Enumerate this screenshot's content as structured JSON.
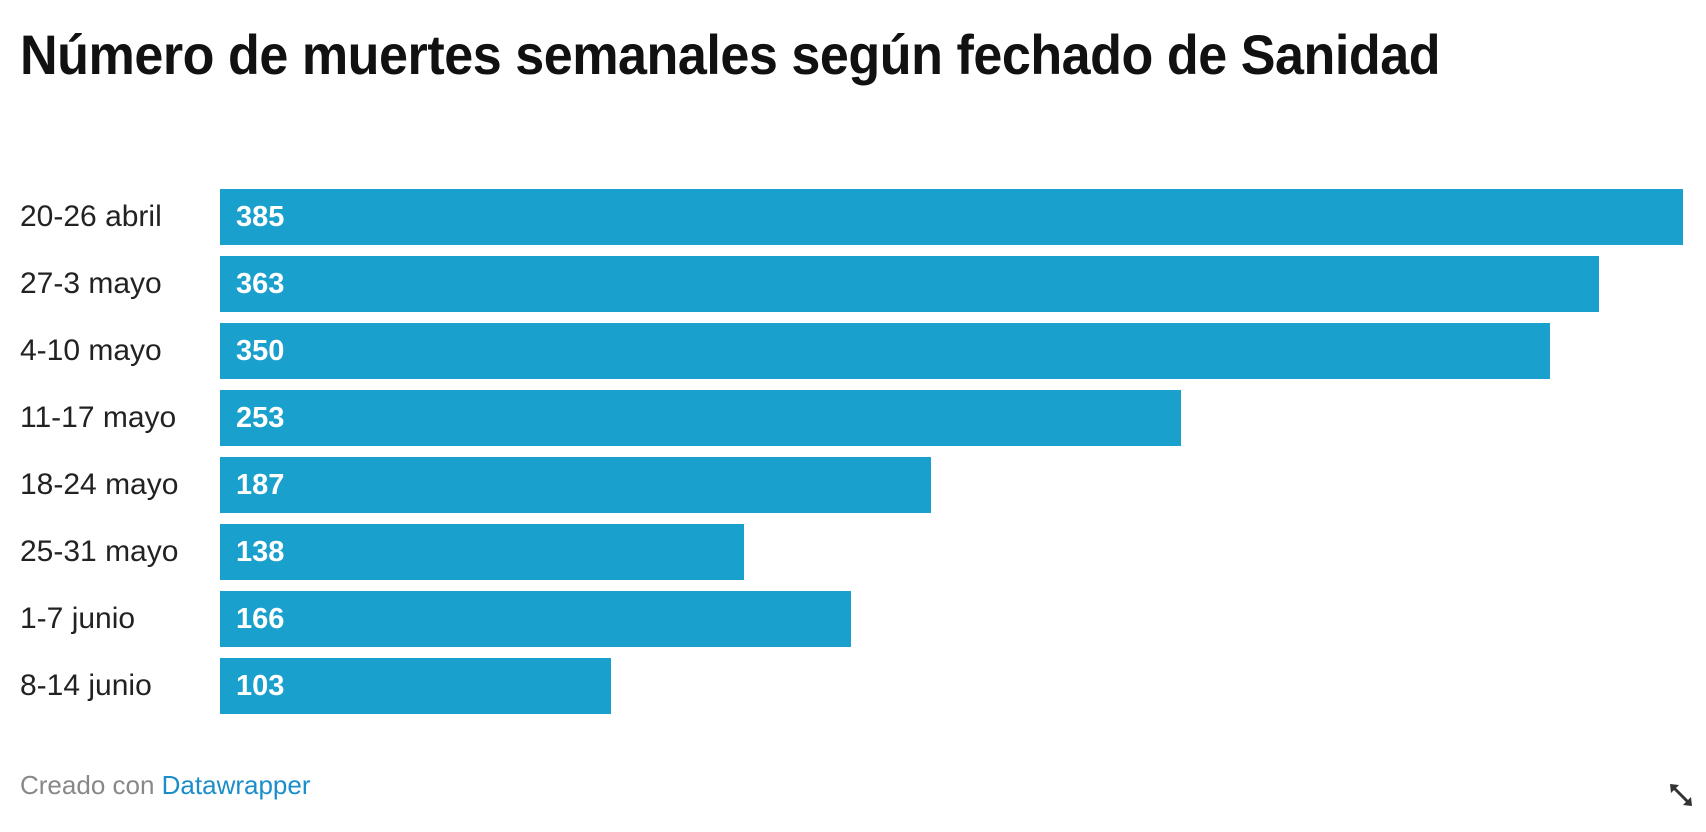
{
  "title": "Número de muertes semanales según fechado de Sanidad",
  "footer": {
    "prefix": "Creado con",
    "link_label": "Datawrapper"
  },
  "icons": {
    "expand": "expand-arrows-icon"
  },
  "colors": {
    "bar": "#1aa0cd",
    "title": "#111111",
    "link": "#1b8ec9"
  },
  "chart_data": {
    "type": "bar",
    "orientation": "horizontal",
    "title": "Número de muertes semanales según fechado de Sanidad",
    "xlabel": "",
    "ylabel": "",
    "categories": [
      "20-26 abril",
      "27-3 mayo",
      "4-10 mayo",
      "11-17 mayo",
      "18-24 mayo",
      "25-31 mayo",
      "1-7 junio",
      "8-14 junio"
    ],
    "values": [
      385,
      363,
      350,
      253,
      187,
      138,
      166,
      103
    ],
    "value_labels": [
      "385",
      "363",
      "350",
      "253",
      "187",
      "138",
      "166",
      "103"
    ],
    "xlim": [
      0,
      385
    ],
    "grid": false,
    "legend": null,
    "bar_color": "#1aa0cd"
  }
}
